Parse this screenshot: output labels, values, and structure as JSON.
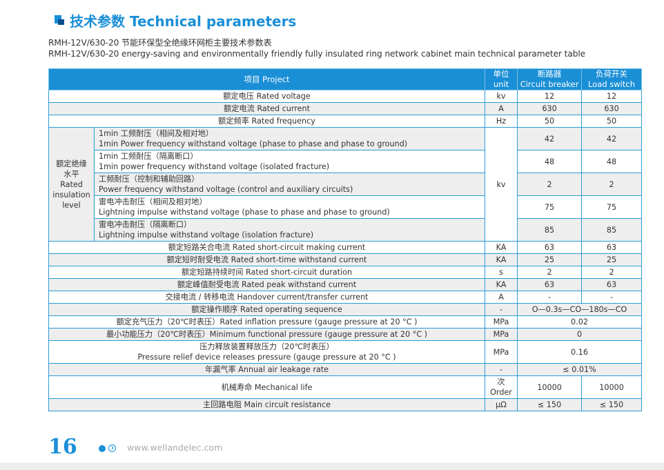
{
  "heading": {
    "title": "技术参数 Technical parameters",
    "subtitle_cn": "RMH-12V/630-20 节能环保型全绝缘环网柜主要技术参数表",
    "subtitle_en": "RMH-12V/630-20 energy-saving and environmentally friendly fully insulated ring network cabinet main technical parameter table"
  },
  "table": {
    "headers": {
      "project": "项目 Project",
      "unit_cn": "单位",
      "unit_en": "unit",
      "breaker_cn": "断路器",
      "breaker_en": "Circuit breaker",
      "switch_cn": "负荷开关",
      "switch_en": "Load switch"
    },
    "rows": [
      {
        "project": "额定电压 Rated voltage",
        "unit": "kv",
        "breaker": "12",
        "switch": "12"
      },
      {
        "project": "额定电流 Rated current",
        "unit": "A",
        "breaker": "630",
        "switch": "630"
      },
      {
        "project": "额定频率 Rated frequency",
        "unit": "Hz",
        "breaker": "50",
        "switch": "50"
      }
    ],
    "insulation": {
      "group_cn_1": "额定绝缘",
      "group_cn_2": "水平",
      "group_en_1": "Rated",
      "group_en_2": "insulation",
      "group_en_3": "level",
      "unit": "kv",
      "items": [
        {
          "cn": "1min 工频耐压（相间及相对地）",
          "en": "1min Power frequency withstand voltage (phase to phase and phase to ground)",
          "breaker": "42",
          "switch": "42"
        },
        {
          "cn": "1min 工频耐压（隔离断口）",
          "en": "1min power frequency withstand voltage (isolated fracture)",
          "breaker": "48",
          "switch": "48"
        },
        {
          "cn": "工频耐压（控制和辅助回路）",
          "en": "Power frequency withstand voltage (control and auxiliary circuits)",
          "breaker": "2",
          "switch": "2"
        },
        {
          "cn": "雷电冲击耐压（相间及相对地）",
          "en": "Lightning impulse withstand voltage (phase to phase and phase to ground)",
          "breaker": "75",
          "switch": "75"
        },
        {
          "cn": "雷电冲击耐压（隔离断口）",
          "en": "Lightning impulse withstand voltage (isolation fracture)",
          "breaker": "85",
          "switch": "85"
        }
      ]
    },
    "rows2": [
      {
        "project": "额定短路关合电流 Rated short-circuit making current",
        "unit": "KA",
        "breaker": "63",
        "switch": "63"
      },
      {
        "project": "额定短时耐受电流 Rated short-time withstand current",
        "unit": "KA",
        "breaker": "25",
        "switch": "25"
      },
      {
        "project": "额定短路持续时间 Rated short-circuit duration",
        "unit": "s",
        "breaker": "2",
        "switch": "2"
      },
      {
        "project": "额定峰值耐受电流 Rated peak withstand current",
        "unit": "KA",
        "breaker": "63",
        "switch": "63"
      },
      {
        "project": "交接电流 / 转移电流 Handover current/transfer current",
        "unit": "A",
        "breaker": "-",
        "switch": "-"
      }
    ],
    "operating_sequence": {
      "project": "额定操作顺序 Rated operating sequence",
      "unit": "-",
      "value": "O—0.3s—CO—180s—CO"
    },
    "inflation_pressure": {
      "project": "额定充气压力（20℃时表压）Rated inflation pressure (gauge pressure at 20 °C )",
      "unit": "MPa",
      "value": "0.02"
    },
    "min_pressure": {
      "project": "最小功能压力（20℃时表压）Minimum functional pressure (gauge pressure at 20 °C )",
      "unit": "MPa",
      "value": "0"
    },
    "release_pressure": {
      "cn": "压力释放装置释放压力（20℃时表压）",
      "en": "Pressure relief device releases pressure (gauge pressure at 20 °C )",
      "unit": "MPa",
      "value": "0.16"
    },
    "leakage": {
      "project": "年漏气率 Annual air leakage rate",
      "unit": "-",
      "value": "≤ 0.01%"
    },
    "mech_life": {
      "project": "机械寿命 Mechanical life",
      "unit_cn": "次",
      "unit_en": "Order",
      "breaker": "10000",
      "switch": "10000"
    },
    "resistance": {
      "project": "主回路电阻 Main circuit resistance",
      "unit": "μΩ",
      "breaker": "≤ 150",
      "switch": "≤ 150"
    }
  },
  "footer": {
    "page_number": "16",
    "website": "www.wellandelec.com"
  }
}
